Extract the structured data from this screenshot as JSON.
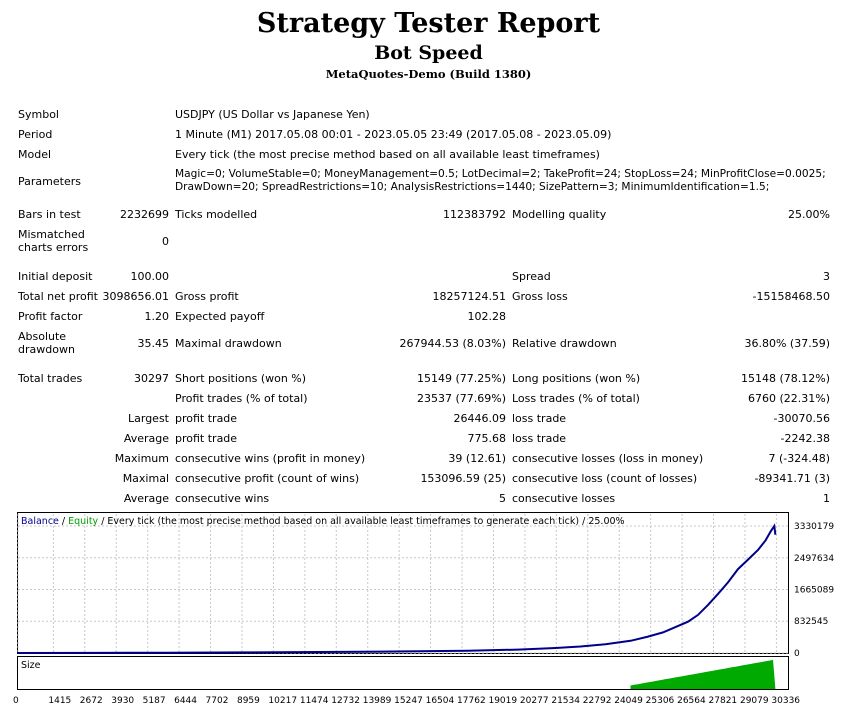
{
  "header": {
    "title": "Strategy Tester Report",
    "subtitle": "Bot Speed",
    "build": "MetaQuotes-Demo (Build 1380)"
  },
  "info": {
    "symbol_label": "Symbol",
    "symbol_value": "USDJPY (US Dollar vs Japanese Yen)",
    "period_label": "Period",
    "period_value": "1 Minute (M1) 2017.05.08 00:01 - 2023.05.05 23:49 (2017.05.08 - 2023.05.09)",
    "model_label": "Model",
    "model_value": "Every tick (the most precise method based on all available least timeframes)",
    "parameters_label": "Parameters",
    "parameters_line1": "Magic=0; VolumeStable=0; MoneyManagement=0.5; LotDecimal=2; TakeProfit=24; StopLoss=24; MinProfitClose=0.0025;",
    "parameters_line2": "DrawDown=20; SpreadRestrictions=10; AnalysisRestrictions=1440; SizePattern=3; MinimumIdentification=1.5;"
  },
  "stats": {
    "bars_label": "Bars in test",
    "bars_value": "2232699",
    "ticks_label": "Ticks modelled",
    "ticks_value": "112383792",
    "quality_label": "Modelling quality",
    "quality_value": "25.00%",
    "mismatch_label_1": "Mismatched",
    "mismatch_label_2": "charts errors",
    "mismatch_value": "0",
    "deposit_label": "Initial deposit",
    "deposit_value": "100.00",
    "spread_label": "Spread",
    "spread_value": "3",
    "net_label": "Total net profit",
    "net_value": "3098656.01",
    "gross_profit_label": "Gross profit",
    "gross_profit_value": "18257124.51",
    "gross_loss_label": "Gross loss",
    "gross_loss_value": "-15158468.50",
    "pf_label": "Profit factor",
    "pf_value": "1.20",
    "ep_label": "Expected payoff",
    "ep_value": "102.28",
    "absdd_label_1": "Absolute",
    "absdd_label_2": "drawdown",
    "absdd_value": "35.45",
    "maxdd_label": "Maximal drawdown",
    "maxdd_value": "267944.53 (8.03%)",
    "reldd_label": "Relative drawdown",
    "reldd_value": "36.80% (37.59)",
    "trades_label": "Total trades",
    "trades_value": "30297",
    "short_label": "Short positions (won %)",
    "short_value": "15149 (77.25%)",
    "long_label": "Long positions (won %)",
    "long_value": "15148 (78.12%)",
    "profit_trades_label": "Profit trades (% of total)",
    "profit_trades_value": "23537 (77.69%)",
    "loss_trades_label": "Loss trades (% of total)",
    "loss_trades_value": "6760 (22.31%)",
    "largest_label": "Largest",
    "largest_profit_label": "profit trade",
    "largest_profit_value": "26446.09",
    "largest_loss_label": "loss trade",
    "largest_loss_value": "-30070.56",
    "average_label": "Average",
    "average_profit_label": "profit trade",
    "average_profit_value": "775.68",
    "average_loss_label": "loss trade",
    "average_loss_value": "-2242.38",
    "maximum_label": "Maximum",
    "max_wins_label": "consecutive wins (profit in money)",
    "max_wins_value": "39 (12.61)",
    "max_losses_label": "consecutive losses (loss in money)",
    "max_losses_value": "7 (-324.48)",
    "maximal_label": "Maximal",
    "maximal_profit_label": "consecutive profit (count of wins)",
    "maximal_profit_value": "153096.59 (25)",
    "maximal_loss_label": "consecutive loss (count of losses)",
    "maximal_loss_value": "-89341.71 (3)",
    "average2_label": "Average",
    "avg_wins_label": "consecutive wins",
    "avg_wins_value": "5",
    "avg_losses_label": "consecutive losses",
    "avg_losses_value": "1"
  },
  "chart_data": {
    "type": "line",
    "legend_balance": "Balance",
    "legend_sep": " / ",
    "legend_equity": "Equity",
    "legend_rest": " / Every tick (the most precise method based on all available least timeframes to generate each tick) / 25.00%",
    "y_ticks": [
      "3330179",
      "2497634",
      "1665089",
      "832545",
      "0"
    ],
    "y_tick_values": [
      3330179,
      2497634,
      1665089,
      832545,
      0
    ],
    "ylim": [
      0,
      3330179
    ],
    "x_ticks": [
      "0",
      "1415",
      "2672",
      "3930",
      "5187",
      "6444",
      "7702",
      "8959",
      "10217",
      "11474",
      "12732",
      "13989",
      "15247",
      "16504",
      "17762",
      "19019",
      "20277",
      "21534",
      "22792",
      "24049",
      "25306",
      "26564",
      "27821",
      "29079",
      "30336"
    ],
    "xlim": [
      0,
      30800
    ],
    "size_label": "Size",
    "colors": {
      "balance": "#00008b",
      "equity": "#00a000",
      "size": "#00aa00",
      "grid": "#c8c8c8"
    },
    "series": [
      {
        "name": "Balance",
        "x": [
          0,
          3000,
          6000,
          9000,
          12000,
          15000,
          18000,
          20000,
          21500,
          22500,
          23500,
          24500,
          25200,
          25800,
          26300,
          26800,
          27200,
          27600,
          28000,
          28400,
          28800,
          29200,
          29600,
          29900,
          30100,
          30250,
          30297
        ],
        "y": [
          0,
          3000,
          8000,
          15000,
          25000,
          40000,
          60000,
          90000,
          130000,
          170000,
          230000,
          320000,
          430000,
          540000,
          680000,
          820000,
          1000000,
          1260000,
          1550000,
          1850000,
          2200000,
          2450000,
          2700000,
          2950000,
          3180000,
          3330179,
          3098756
        ]
      }
    ]
  }
}
